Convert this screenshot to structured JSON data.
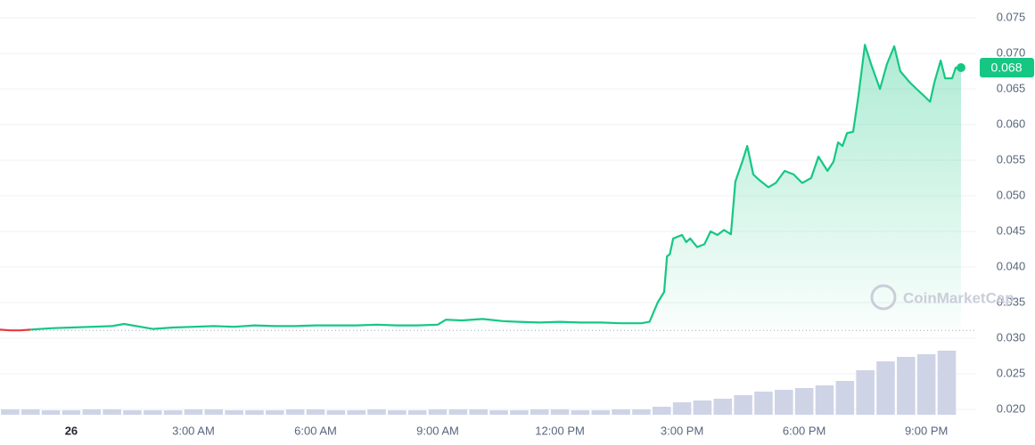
{
  "chart_data": {
    "type": "line",
    "xlim": [
      -1.75,
      21.85
    ],
    "ylim": [
      0.015,
      0.0775
    ],
    "xticks": [
      {
        "value": 0,
        "label": "26"
      },
      {
        "value": 3,
        "label": "3:00 AM"
      },
      {
        "value": 6,
        "label": "6:00 AM"
      },
      {
        "value": 9,
        "label": "9:00 AM"
      },
      {
        "value": 12,
        "label": "12:00 PM"
      },
      {
        "value": 15,
        "label": "3:00 PM"
      },
      {
        "value": 18,
        "label": "6:00 PM"
      },
      {
        "value": 21,
        "label": "9:00 PM"
      }
    ],
    "yticks": [
      {
        "value": 0.02,
        "label": "0.020"
      },
      0.025,
      {
        "value": 0.03,
        "label": "0.030"
      },
      0.035,
      {
        "value": 0.04,
        "label": "0.040"
      },
      0.045,
      {
        "value": 0.05,
        "label": "0.050"
      },
      0.055,
      {
        "value": 0.06,
        "label": "0.060"
      },
      0.065,
      {
        "value": 0.07,
        "label": "0.070"
      },
      0.075
    ],
    "grid": true,
    "reference_line": 0.0311,
    "series": [
      {
        "color": "#ea3943",
        "x": [
          -1.75,
          -1.5,
          -1.25,
          -1.0
        ],
        "values": [
          0.0312,
          0.0311,
          0.0311,
          0.0312
        ]
      },
      {
        "color": "#16c784",
        "x": [
          -1.0,
          -0.5,
          0,
          0.5,
          1.0,
          1.3,
          1.7,
          2.0,
          2.5,
          3,
          3.5,
          4,
          4.5,
          5,
          5.5,
          6,
          6.5,
          7,
          7.5,
          8,
          8.5,
          9.0,
          9.2,
          9.6,
          10.1,
          10.6,
          11,
          11.5,
          12,
          12.5,
          13,
          13.5,
          14.0,
          14.2,
          14.4,
          14.56,
          14.63,
          14.7,
          14.78,
          15.0,
          15.1,
          15.2,
          15.37,
          15.55,
          15.7,
          15.87,
          16.03,
          16.2,
          16.31,
          16.49,
          16.6,
          16.75,
          16.9,
          17.12,
          17.3,
          17.52,
          17.74,
          17.95,
          18.17,
          18.35,
          18.57,
          18.72,
          18.83,
          18.94,
          19.05,
          19.2,
          19.33,
          19.49,
          19.64,
          19.86,
          20.03,
          20.21,
          20.36,
          20.58,
          20.76,
          20.91,
          21.09,
          21.2,
          21.35,
          21.46,
          21.63,
          21.72,
          21.85
        ],
        "values": [
          0.0312,
          0.0314,
          0.0315,
          0.0316,
          0.0317,
          0.032,
          0.0316,
          0.0313,
          0.0315,
          0.0316,
          0.0317,
          0.0316,
          0.0318,
          0.0317,
          0.0317,
          0.0318,
          0.0318,
          0.0318,
          0.0319,
          0.0318,
          0.0318,
          0.0319,
          0.0326,
          0.0325,
          0.0327,
          0.0324,
          0.0323,
          0.0322,
          0.0323,
          0.0322,
          0.0322,
          0.0321,
          0.0321,
          0.0323,
          0.035,
          0.0365,
          0.0415,
          0.0418,
          0.044,
          0.0445,
          0.0435,
          0.044,
          0.0428,
          0.0432,
          0.045,
          0.0445,
          0.0452,
          0.0446,
          0.052,
          0.055,
          0.057,
          0.053,
          0.0522,
          0.0512,
          0.0518,
          0.0535,
          0.053,
          0.0518,
          0.0525,
          0.0555,
          0.0535,
          0.0548,
          0.0575,
          0.057,
          0.0588,
          0.059,
          0.064,
          0.0712,
          0.0685,
          0.065,
          0.0685,
          0.071,
          0.0675,
          0.066,
          0.065,
          0.0642,
          0.0632,
          0.066,
          0.069,
          0.0665,
          0.0665,
          0.068,
          0.068
        ]
      }
    ],
    "current_price": 0.068,
    "volume": {
      "color": "#cfd3e6",
      "ylim": [
        0,
        100
      ],
      "x": [
        -1.5,
        -1.0,
        -0.5,
        0,
        0.5,
        1.0,
        1.5,
        2.0,
        2.5,
        3.0,
        3.5,
        4.0,
        4.5,
        5.0,
        5.5,
        6.0,
        6.5,
        7.0,
        7.5,
        8.0,
        8.5,
        9.0,
        9.5,
        10.0,
        10.5,
        11.0,
        11.5,
        12.0,
        12.5,
        13.0,
        13.5,
        14.0,
        14.5,
        15.0,
        15.5,
        16.0,
        16.5,
        17.0,
        17.5,
        18.0,
        18.5,
        19.0,
        19.5,
        20.0,
        20.5,
        21.0,
        21.5
      ],
      "values": [
        6,
        6,
        5,
        5,
        6,
        6,
        5,
        5,
        5,
        6,
        6,
        5,
        5,
        5,
        6,
        6,
        5,
        5,
        6,
        5,
        5,
        6,
        6,
        6,
        5,
        5,
        6,
        6,
        5,
        5,
        6,
        6,
        9,
        14,
        16,
        18,
        22,
        26,
        28,
        30,
        33,
        38,
        50,
        60,
        65,
        68,
        72
      ]
    },
    "watermark": "CoinMarketCap"
  }
}
